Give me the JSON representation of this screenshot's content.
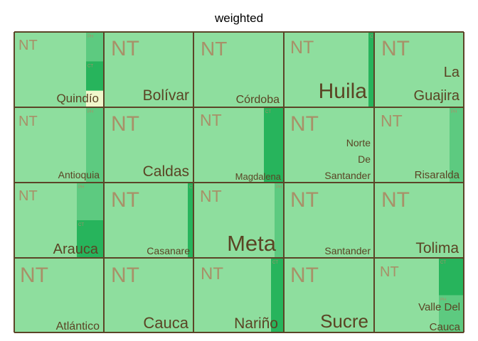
{
  "chart_data": {
    "type": "treemap",
    "title": "weighted",
    "cell_label": "NT",
    "colors": {
      "NT": "#8ede9e",
      "PH": "#5dca80",
      "CT": "#27b45c",
      "highlight": "#f0f7cc",
      "border": "#5b4427"
    },
    "tiles": [
      {
        "name": "Quindío",
        "segments": [
          {
            "category": "PH",
            "value": 0.2
          },
          {
            "category": "CT",
            "value": 0.2
          },
          {
            "category": "highlight",
            "value": 0.2
          }
        ]
      },
      {
        "name": "Bolívar",
        "segments": []
      },
      {
        "name": "Córdoba",
        "segments": []
      },
      {
        "name": "Huila",
        "segments": [
          {
            "category": "CT",
            "value": 0.06
          }
        ]
      },
      {
        "name": "La Guajira",
        "segments": []
      },
      {
        "name": "Antioquia",
        "segments": [
          {
            "category": "PH",
            "value": 0.2
          }
        ]
      },
      {
        "name": "Caldas",
        "segments": []
      },
      {
        "name": "Magdalena",
        "segments": [
          {
            "category": "CT",
            "value": 0.22
          }
        ]
      },
      {
        "name": "Norte De Santander",
        "segments": []
      },
      {
        "name": "Risaralda",
        "segments": [
          {
            "category": "PH",
            "value": 0.16
          }
        ]
      },
      {
        "name": "Arauca",
        "segments": [
          {
            "category": "PH",
            "value": 0.3
          },
          {
            "category": "CT",
            "value": 0.3
          }
        ]
      },
      {
        "name": "Casanare",
        "segments": [
          {
            "category": "CT",
            "value": 0.06
          }
        ]
      },
      {
        "name": "Meta",
        "segments": [
          {
            "category": "PH",
            "value": 0.1
          }
        ]
      },
      {
        "name": "Santander",
        "segments": []
      },
      {
        "name": "Tolima",
        "segments": []
      },
      {
        "name": "Atlántico",
        "segments": []
      },
      {
        "name": "Cauca",
        "segments": []
      },
      {
        "name": "Nariño",
        "segments": [
          {
            "category": "CT",
            "value": 0.14
          }
        ]
      },
      {
        "name": "Sucre",
        "segments": []
      },
      {
        "name": "Valle Del Cauca",
        "segments": [
          {
            "category": "CT",
            "value": 0.28
          },
          {
            "category": "PH",
            "value": 0.28
          }
        ]
      }
    ]
  }
}
